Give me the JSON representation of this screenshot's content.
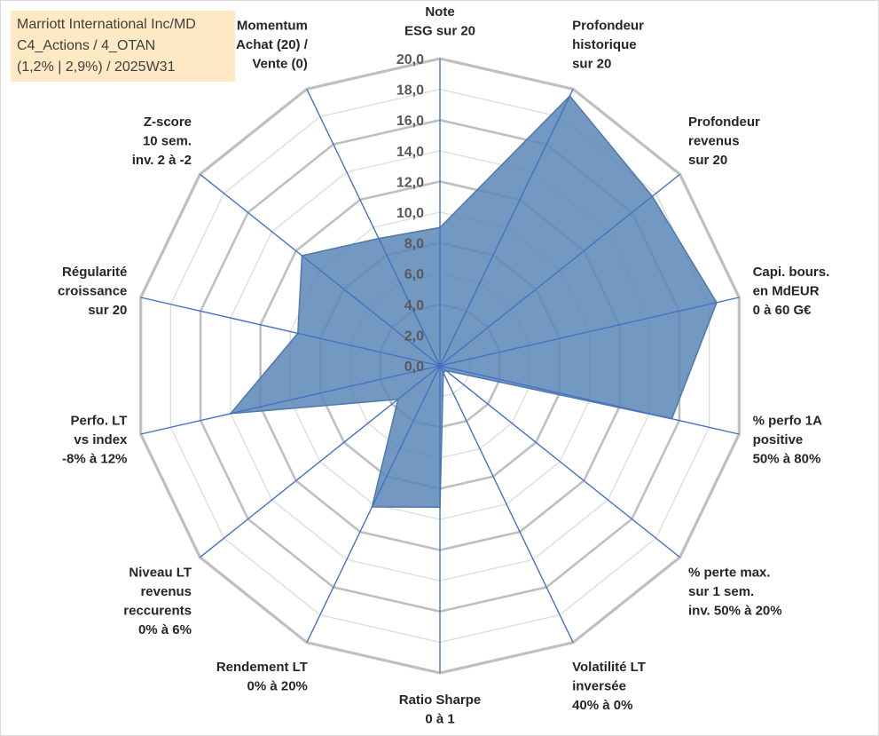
{
  "chart_data": {
    "type": "radar",
    "title_lines": [
      "Marriott International Inc/MD",
      "C4_Actions / 4_OTAN",
      "(1,2% | 2,9%) / 2025W31"
    ],
    "rlim": [
      0,
      20
    ],
    "rticks": [
      "0,0",
      "2,0",
      "4,0",
      "6,0",
      "8,0",
      "10,0",
      "12,0",
      "14,0",
      "16,0",
      "18,0",
      "20,0"
    ],
    "grid": true,
    "categories": [
      [
        "Note",
        "ESG sur 20"
      ],
      [
        "Profondeur",
        "historique",
        "sur 20"
      ],
      [
        "Profondeur",
        "revenus",
        "sur 20"
      ],
      [
        "Capi. bours.",
        "en MdEUR",
        "0 à 60 G€"
      ],
      [
        "% perfo 1A",
        "positive",
        "50% à 80%"
      ],
      [
        "% perte max.",
        "sur 1 sem.",
        "inv. 50% à 20%"
      ],
      [
        "Volatilité LT",
        "inversée",
        "40% à 0%"
      ],
      [
        "Ratio Sharpe",
        "0 à 1"
      ],
      [
        "Rendement LT",
        "0% à 20%"
      ],
      [
        "Niveau LT",
        "revenus",
        "reccurents",
        "0% à 6%"
      ],
      [
        "Perfo. LT",
        "vs index",
        "-8% à 12%"
      ],
      [
        "Régularité",
        "croissance",
        "sur 20"
      ],
      [
        "Z-score",
        "10 sem.",
        "inv. 2 à -2"
      ],
      [
        "Momentum",
        "Achat (20) /",
        "Vente (0)"
      ]
    ],
    "series": [
      {
        "values": [
          9.0,
          19.5,
          17.7,
          18.5,
          15.5,
          0.5,
          0.5,
          9.2,
          10.2,
          3.5,
          14.0,
          9.5,
          11.5,
          9.2
        ],
        "fill": "#5b87b7",
        "fill_opacity": 0.85,
        "stroke": "#4e79aa"
      }
    ],
    "colors": {
      "grid": "#c0c0c0",
      "spokes": "#4472c4",
      "title_bg": "#fde9c3"
    }
  }
}
